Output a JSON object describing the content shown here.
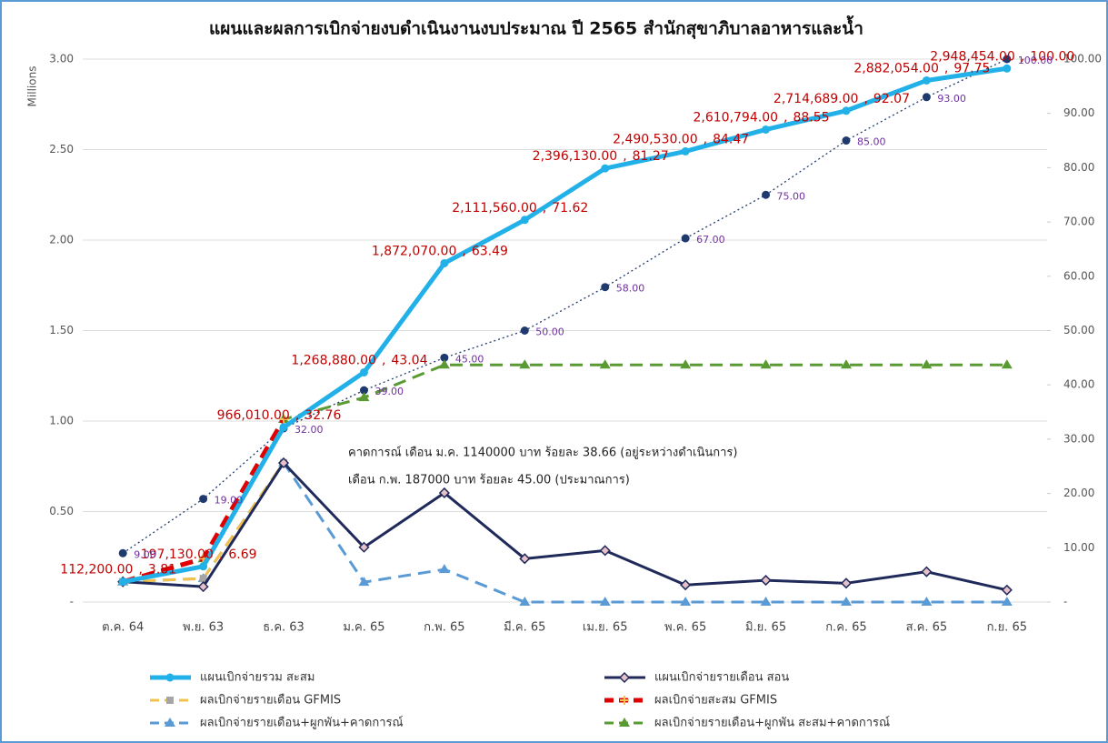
{
  "chart_data": {
    "type": "line",
    "title": "แผนและผลการเบิกจ่ายงบดำเนินงานงบประมาณ ปี 2565 สำนักสุขาภิบาลอาหารและน้ำ",
    "y_label": "Millions",
    "categories": [
      "ต.ค. 64",
      "พ.ย. 63",
      "ธ.ค. 63",
      "ม.ค. 65",
      "ก.พ. 65",
      "มี.ค. 65",
      "เม.ย. 65",
      "พ.ค. 65",
      "มิ.ย. 65",
      "ก.ค. 65",
      "ส.ค. 65",
      "ก.ย. 65"
    ],
    "ylim": [
      0,
      3
    ],
    "yticks": [
      {
        "value": 0,
        "label": "-"
      },
      {
        "value": 0.5,
        "label": "0.50"
      },
      {
        "value": 1,
        "label": "1.00"
      },
      {
        "value": 1.5,
        "label": "1.50"
      },
      {
        "value": 2,
        "label": "2.00"
      },
      {
        "value": 2.5,
        "label": "2.50"
      },
      {
        "value": 3,
        "label": "3.00"
      }
    ],
    "y2lim": [
      0,
      100
    ],
    "y2ticks": [
      {
        "value": 0,
        "label": "-"
      },
      {
        "value": 10,
        "label": "10.00"
      },
      {
        "value": 20,
        "label": "20.00"
      },
      {
        "value": 30,
        "label": "30.00"
      },
      {
        "value": 40,
        "label": "40.00"
      },
      {
        "value": 50,
        "label": "50.00"
      },
      {
        "value": 60,
        "label": "60.00"
      },
      {
        "value": 70,
        "label": "70.00"
      },
      {
        "value": 80,
        "label": "80.00"
      },
      {
        "value": 90,
        "label": "90.00"
      },
      {
        "value": 100,
        "label": "100.00"
      }
    ],
    "grid": true,
    "legend": "bottom",
    "label_separator": ",",
    "series": [
      {
        "name": "แผนเบิกจ่ายรวม สะสม",
        "color": "#22b0e8",
        "style": "solid",
        "weight": "thick",
        "marker": "circle",
        "values": [
          0.1122,
          0.19713,
          0.96601,
          1.26888,
          1.87207,
          2.11156,
          2.39613,
          2.49053,
          2.610794,
          2.714689,
          2.882054,
          2.948454
        ],
        "value_labels": [
          "112,200.00",
          "197,130.00",
          "966,010.00",
          "1,268,880.00",
          "1,872,070.00",
          "2,111,560.00",
          "2,396,130.00",
          "2,490,530.00",
          "2,610,794.00",
          "2,714,689.00",
          "2,882,054.00",
          "2,948,454.00"
        ],
        "percent_labels": [
          "3.81",
          "6.69",
          "32.76",
          "43.04",
          "63.49",
          "71.62",
          "81.27",
          "84.47",
          "88.55",
          "92.07",
          "97.75",
          "100.00"
        ]
      },
      {
        "name": "แผนเบิกจ่ายรายเดือน สอน",
        "color": "#1f2a5a",
        "style": "solid",
        "weight": "medium",
        "marker": "diamond",
        "values": [
          0.1122,
          0.08493,
          0.76888,
          0.30287,
          0.60319,
          0.23949,
          0.28457,
          0.0944,
          0.12026,
          0.1039,
          0.16737,
          0.0664
        ]
      },
      {
        "name": "ผลเบิกจ่ายรายเดือน GFMIS",
        "color": "#f2c14e",
        "style": "dashed",
        "weight": "medium",
        "marker": "square",
        "marker_color": "#a5a5a5",
        "values": [
          0.1122,
          0.13,
          0.77,
          null,
          null,
          null,
          null,
          null,
          null,
          null,
          null,
          null
        ]
      },
      {
        "name": "ผลเบิกจ่ายสะสม GFMIS",
        "color": "#e00000",
        "style": "dashed",
        "weight": "thick",
        "marker": "star",
        "marker_color": "#f2c14e",
        "values": [
          0.1122,
          0.24,
          1.01,
          null,
          null,
          null,
          null,
          null,
          null,
          null,
          null,
          null
        ]
      },
      {
        "name": "ผลเบิกจ่ายรายเดือน+ผูกพัน+คาดการณ์",
        "color": "#5b9bd5",
        "style": "dashed",
        "weight": "medium",
        "marker": "triangle",
        "values": [
          0.1122,
          0.13,
          0.77,
          0.11,
          0.18,
          0,
          0,
          0,
          0,
          0,
          0,
          0
        ]
      },
      {
        "name": "ผลเบิกจ่ายรายเดือน+ผูกพัน สะสม+คาดการณ์",
        "color": "#5a9a32",
        "style": "dashed",
        "weight": "medium",
        "marker": "triangle",
        "values": [
          0.1122,
          0.24,
          1.01,
          1.13,
          1.31,
          1.31,
          1.31,
          1.31,
          1.31,
          1.31,
          1.31,
          1.31
        ]
      },
      {
        "color": "#1f3a6e",
        "style": "dotted",
        "weight": "thin",
        "marker": "circle",
        "axis": "y2",
        "label_color": "#7030a0",
        "values": [
          9,
          19,
          32,
          39,
          45,
          50,
          58,
          67,
          75,
          85,
          93,
          100
        ],
        "value_labels": [
          "9.00",
          "19.00",
          "32.00",
          "39.00",
          "45.00",
          "50.00",
          "58.00",
          "67.00",
          "75.00",
          "85.00",
          "93.00",
          "100.00"
        ]
      }
    ],
    "annotations": [
      "คาดการณ์ เดือน ม.ค. 1140000 บาท ร้อยละ 38.66 (อยู่ระหว่างดำเนินการ)",
      "เดือน ก.พ. 187000 บาท ร้อยละ 45.00 (ประมาณการ)"
    ]
  }
}
